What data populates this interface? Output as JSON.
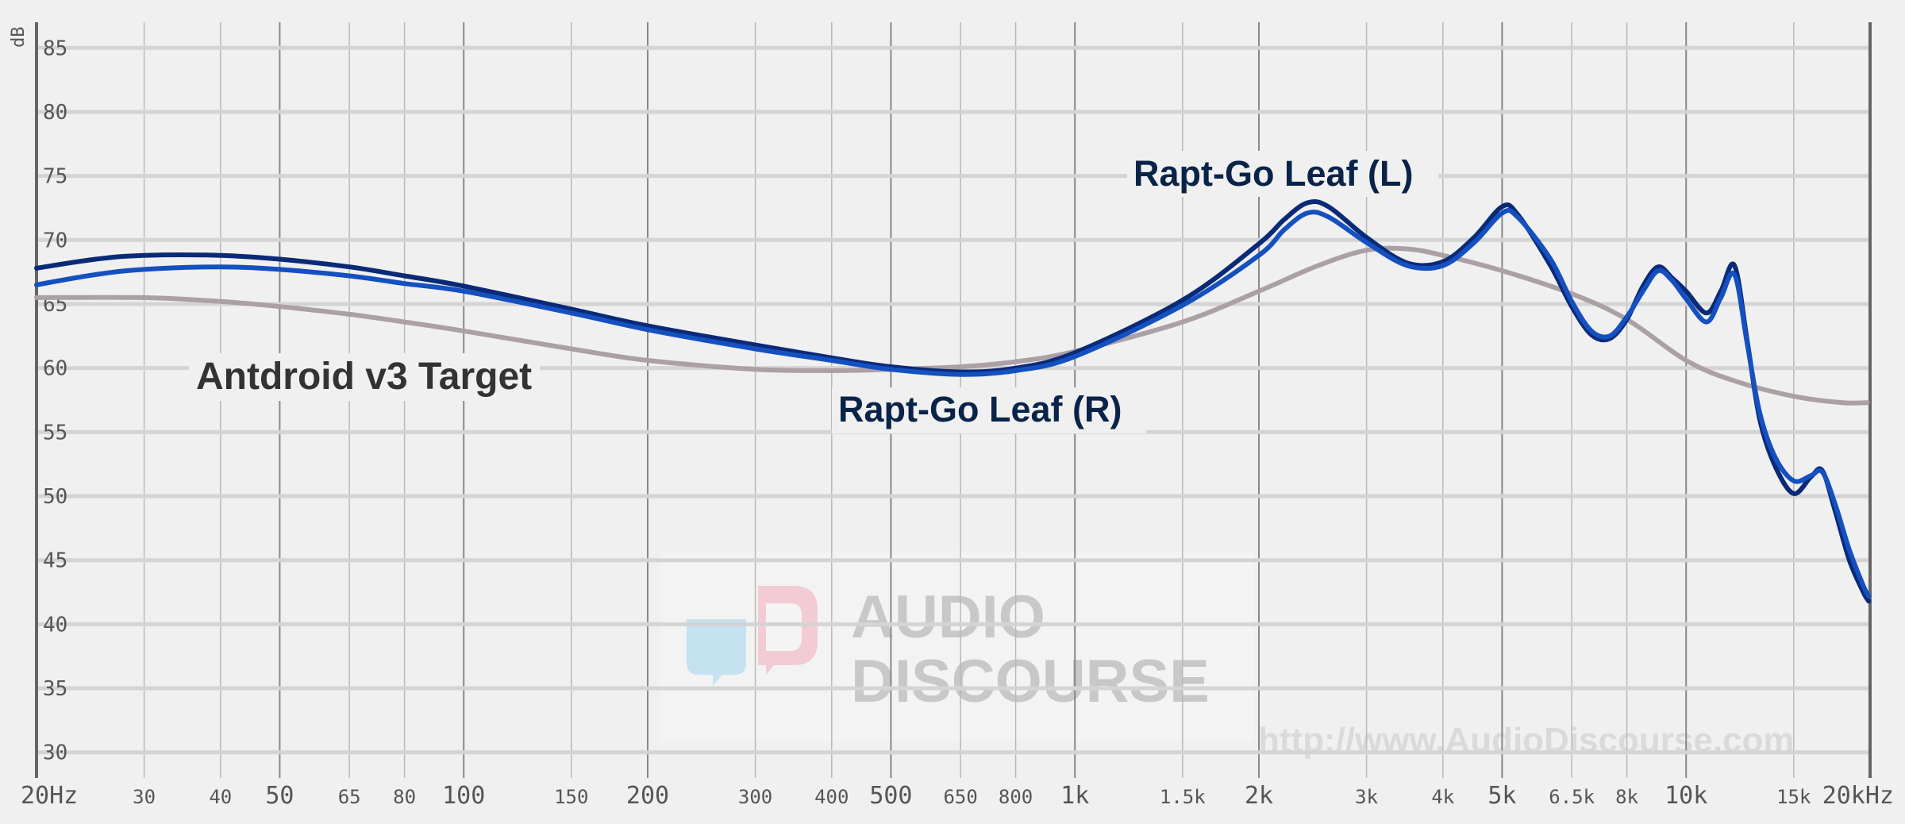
{
  "chart_data": {
    "type": "line",
    "title": "",
    "xscale": "log",
    "xlim": [
      20,
      20000
    ],
    "ylim": [
      28,
      87
    ],
    "ylabel": "dB",
    "x_unit_label": "Hz",
    "x_end_label": "20kHz",
    "grid": true,
    "y_ticks": [
      85,
      80,
      75,
      70,
      65,
      60,
      55,
      50,
      45,
      40,
      35,
      30
    ],
    "x_ticks": [
      {
        "f": 20,
        "label": "20Hz",
        "major": true
      },
      {
        "f": 30,
        "label": "30",
        "major": false
      },
      {
        "f": 40,
        "label": "40",
        "major": false
      },
      {
        "f": 50,
        "label": "50",
        "major": true
      },
      {
        "f": 65,
        "label": "65",
        "major": false
      },
      {
        "f": 80,
        "label": "80",
        "major": false
      },
      {
        "f": 100,
        "label": "100",
        "major": true
      },
      {
        "f": 150,
        "label": "150",
        "major": false
      },
      {
        "f": 200,
        "label": "200",
        "major": true
      },
      {
        "f": 300,
        "label": "300",
        "major": false
      },
      {
        "f": 400,
        "label": "400",
        "major": false
      },
      {
        "f": 500,
        "label": "500",
        "major": true
      },
      {
        "f": 650,
        "label": "650",
        "major": false
      },
      {
        "f": 800,
        "label": "800",
        "major": false
      },
      {
        "f": 1000,
        "label": "1k",
        "major": true
      },
      {
        "f": 1500,
        "label": "1.5k",
        "major": false
      },
      {
        "f": 2000,
        "label": "2k",
        "major": true
      },
      {
        "f": 3000,
        "label": "3k",
        "major": false
      },
      {
        "f": 4000,
        "label": "4k",
        "major": false
      },
      {
        "f": 5000,
        "label": "5k",
        "major": true
      },
      {
        "f": 6500,
        "label": "6.5k",
        "major": false
      },
      {
        "f": 8000,
        "label": "8k",
        "major": false
      },
      {
        "f": 10000,
        "label": "10k",
        "major": true
      },
      {
        "f": 15000,
        "label": "15k",
        "major": false
      },
      {
        "f": 20000,
        "label": "20kHz",
        "major": true
      }
    ],
    "series": [
      {
        "name": "Antdroid v3 Target",
        "color": "#aba0a6",
        "points": [
          [
            20,
            65.5
          ],
          [
            30,
            65.5
          ],
          [
            40,
            65.2
          ],
          [
            50,
            64.8
          ],
          [
            65,
            64.2
          ],
          [
            80,
            63.6
          ],
          [
            100,
            62.9
          ],
          [
            150,
            61.5
          ],
          [
            200,
            60.6
          ],
          [
            300,
            59.9
          ],
          [
            400,
            59.8
          ],
          [
            500,
            59.9
          ],
          [
            650,
            60.1
          ],
          [
            800,
            60.5
          ],
          [
            1000,
            61.3
          ],
          [
            1500,
            63.6
          ],
          [
            2000,
            66.0
          ],
          [
            2500,
            68.0
          ],
          [
            3000,
            69.2
          ],
          [
            3500,
            69.3
          ],
          [
            4000,
            68.8
          ],
          [
            5000,
            67.6
          ],
          [
            6500,
            65.8
          ],
          [
            8000,
            63.8
          ],
          [
            10000,
            60.6
          ],
          [
            12000,
            59.0
          ],
          [
            15000,
            57.8
          ],
          [
            18000,
            57.3
          ],
          [
            19800,
            57.3
          ]
        ]
      },
      {
        "name": "Rapt-Go Leaf (L)",
        "color": "#0a2a78",
        "points": [
          [
            20,
            67.8
          ],
          [
            25,
            68.5
          ],
          [
            30,
            68.8
          ],
          [
            40,
            68.8
          ],
          [
            50,
            68.5
          ],
          [
            65,
            67.9
          ],
          [
            80,
            67.2
          ],
          [
            100,
            66.4
          ],
          [
            150,
            64.6
          ],
          [
            200,
            63.3
          ],
          [
            300,
            61.8
          ],
          [
            400,
            60.8
          ],
          [
            500,
            60.1
          ],
          [
            650,
            59.7
          ],
          [
            800,
            60.0
          ],
          [
            1000,
            61.2
          ],
          [
            1500,
            65.3
          ],
          [
            2000,
            69.7
          ],
          [
            2200,
            71.6
          ],
          [
            2400,
            72.9
          ],
          [
            2600,
            72.6
          ],
          [
            3000,
            70.2
          ],
          [
            3500,
            68.2
          ],
          [
            4000,
            68.3
          ],
          [
            4500,
            70.2
          ],
          [
            5000,
            72.6
          ],
          [
            5300,
            72.0
          ],
          [
            6000,
            68.0
          ],
          [
            6500,
            64.8
          ],
          [
            7000,
            62.6
          ],
          [
            7500,
            62.3
          ],
          [
            8000,
            63.8
          ],
          [
            8500,
            66.4
          ],
          [
            9000,
            67.9
          ],
          [
            9500,
            67.0
          ],
          [
            10000,
            66.0
          ],
          [
            10800,
            64.3
          ],
          [
            11400,
            66.0
          ],
          [
            12000,
            68.0
          ],
          [
            12600,
            62.0
          ],
          [
            13200,
            56.0
          ],
          [
            14000,
            52.3
          ],
          [
            15000,
            50.2
          ],
          [
            16000,
            51.5
          ],
          [
            16700,
            52.0
          ],
          [
            17500,
            49.0
          ],
          [
            18500,
            45.0
          ],
          [
            19500,
            42.5
          ],
          [
            19900,
            41.8
          ]
        ]
      },
      {
        "name": "Rapt-Go Leaf (R)",
        "color": "#1450c0",
        "points": [
          [
            20,
            66.5
          ],
          [
            25,
            67.3
          ],
          [
            30,
            67.7
          ],
          [
            40,
            67.9
          ],
          [
            50,
            67.7
          ],
          [
            65,
            67.2
          ],
          [
            80,
            66.6
          ],
          [
            100,
            66.0
          ],
          [
            150,
            64.3
          ],
          [
            200,
            63.0
          ],
          [
            300,
            61.5
          ],
          [
            400,
            60.6
          ],
          [
            500,
            59.9
          ],
          [
            650,
            59.5
          ],
          [
            800,
            59.8
          ],
          [
            1000,
            60.9
          ],
          [
            1500,
            64.9
          ],
          [
            2000,
            68.8
          ],
          [
            2200,
            70.8
          ],
          [
            2400,
            72.1
          ],
          [
            2600,
            71.8
          ],
          [
            3000,
            69.8
          ],
          [
            3500,
            68.0
          ],
          [
            4000,
            68.0
          ],
          [
            4500,
            69.8
          ],
          [
            5000,
            72.1
          ],
          [
            5300,
            71.8
          ],
          [
            6000,
            68.5
          ],
          [
            6500,
            65.2
          ],
          [
            7000,
            62.9
          ],
          [
            7500,
            62.5
          ],
          [
            8000,
            64.0
          ],
          [
            8500,
            66.0
          ],
          [
            9000,
            67.6
          ],
          [
            9500,
            66.8
          ],
          [
            10000,
            65.4
          ],
          [
            10800,
            63.6
          ],
          [
            11400,
            65.5
          ],
          [
            12000,
            67.3
          ],
          [
            12600,
            61.8
          ],
          [
            13200,
            56.5
          ],
          [
            14000,
            53.0
          ],
          [
            15000,
            51.2
          ],
          [
            16000,
            51.6
          ],
          [
            16700,
            51.9
          ],
          [
            17500,
            49.5
          ],
          [
            18500,
            45.8
          ],
          [
            19500,
            43.0
          ],
          [
            19900,
            42.2
          ]
        ]
      }
    ],
    "annotations": [
      {
        "text": "Antdroid v3 Target",
        "color": "#333333"
      },
      {
        "text": "Rapt-Go Leaf (R)",
        "color": "#0a2348"
      },
      {
        "text": "Rapt-Go Leaf (L)",
        "color": "#0a2348"
      }
    ],
    "watermark": {
      "line1": "AUDIO",
      "line2": "DISCOURSE",
      "url": "http://www.AudioDiscourse.com"
    }
  }
}
